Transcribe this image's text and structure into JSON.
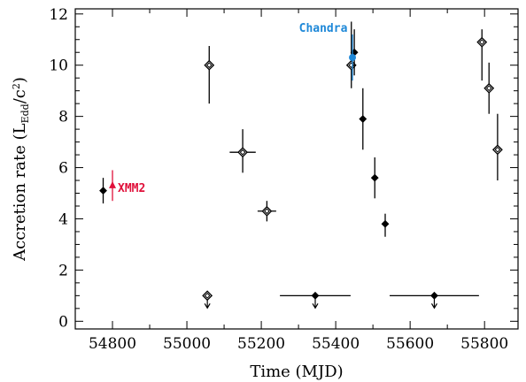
{
  "chart_data": {
    "type": "scatter",
    "title": "",
    "xlabel": "Time (MJD)",
    "ylabel_prefix": "Accretion rate (L",
    "ylabel_sub": "Edd",
    "ylabel_mid": "/c",
    "ylabel_sup": "2",
    "ylabel_suffix": ")",
    "xlim": [
      54700,
      55890
    ],
    "ylim": [
      -0.3,
      12.2
    ],
    "xticks": [
      54800,
      55000,
      55200,
      55400,
      55600,
      55800
    ],
    "yticks": [
      0,
      2,
      4,
      6,
      8,
      10,
      12
    ],
    "grid": false,
    "points": [
      {
        "x": 54775,
        "y": 5.1,
        "yerr": [
          0.5,
          0.5
        ],
        "marker": "diamond-filled"
      },
      {
        "x": 55055,
        "y": 1.0,
        "marker": "diamond-open",
        "upper_limit": true
      },
      {
        "x": 55060,
        "y": 10.0,
        "yerr": [
          1.5,
          0.75
        ],
        "marker": "diamond-open"
      },
      {
        "x": 55150,
        "y": 6.6,
        "xerr": [
          35,
          35
        ],
        "yerr": [
          0.8,
          0.9
        ],
        "marker": "diamond-open"
      },
      {
        "x": 55215,
        "y": 4.3,
        "xerr": [
          25,
          25
        ],
        "yerr": [
          0.4,
          0.4
        ],
        "marker": "diamond-open"
      },
      {
        "x": 55345,
        "y": 1.0,
        "xerr": [
          95,
          95
        ],
        "marker": "diamond-filled",
        "upper_limit": true
      },
      {
        "x": 55442,
        "y": 10.0,
        "yerr": [
          0.9,
          1.7
        ],
        "marker": "diamond-open"
      },
      {
        "x": 55450,
        "y": 10.5,
        "yerr": [
          0.9,
          0.9
        ],
        "marker": "diamond-filled"
      },
      {
        "x": 55473,
        "y": 7.9,
        "yerr": [
          1.2,
          1.2
        ],
        "marker": "diamond-filled"
      },
      {
        "x": 55505,
        "y": 5.6,
        "yerr": [
          0.8,
          0.8
        ],
        "marker": "diamond-filled"
      },
      {
        "x": 55533,
        "y": 3.8,
        "yerr": [
          0.5,
          0.4
        ],
        "marker": "diamond-filled"
      },
      {
        "x": 55665,
        "y": 1.0,
        "xerr": [
          120,
          120
        ],
        "marker": "diamond-filled",
        "upper_limit": true
      },
      {
        "x": 55793,
        "y": 10.9,
        "yerr": [
          1.5,
          0.5
        ],
        "marker": "diamond-open"
      },
      {
        "x": 55812,
        "y": 9.1,
        "yerr": [
          1.0,
          1.0
        ],
        "marker": "diamond-open"
      },
      {
        "x": 55835,
        "y": 6.7,
        "yerr": [
          1.2,
          1.4
        ],
        "marker": "diamond-open"
      }
    ],
    "series": [
      {
        "name": "XMM2",
        "color": "#e0103a",
        "marker": "triangle",
        "points": [
          {
            "x": 54800,
            "y": 5.3,
            "yerr": [
              0.6,
              0.6
            ]
          }
        ]
      },
      {
        "name": "Chandra",
        "color": "#1e88d8",
        "marker": "circle",
        "points": [
          {
            "x": 55445,
            "y": 10.3,
            "yerr": [
              0.9,
              0.9
            ]
          }
        ]
      }
    ]
  }
}
